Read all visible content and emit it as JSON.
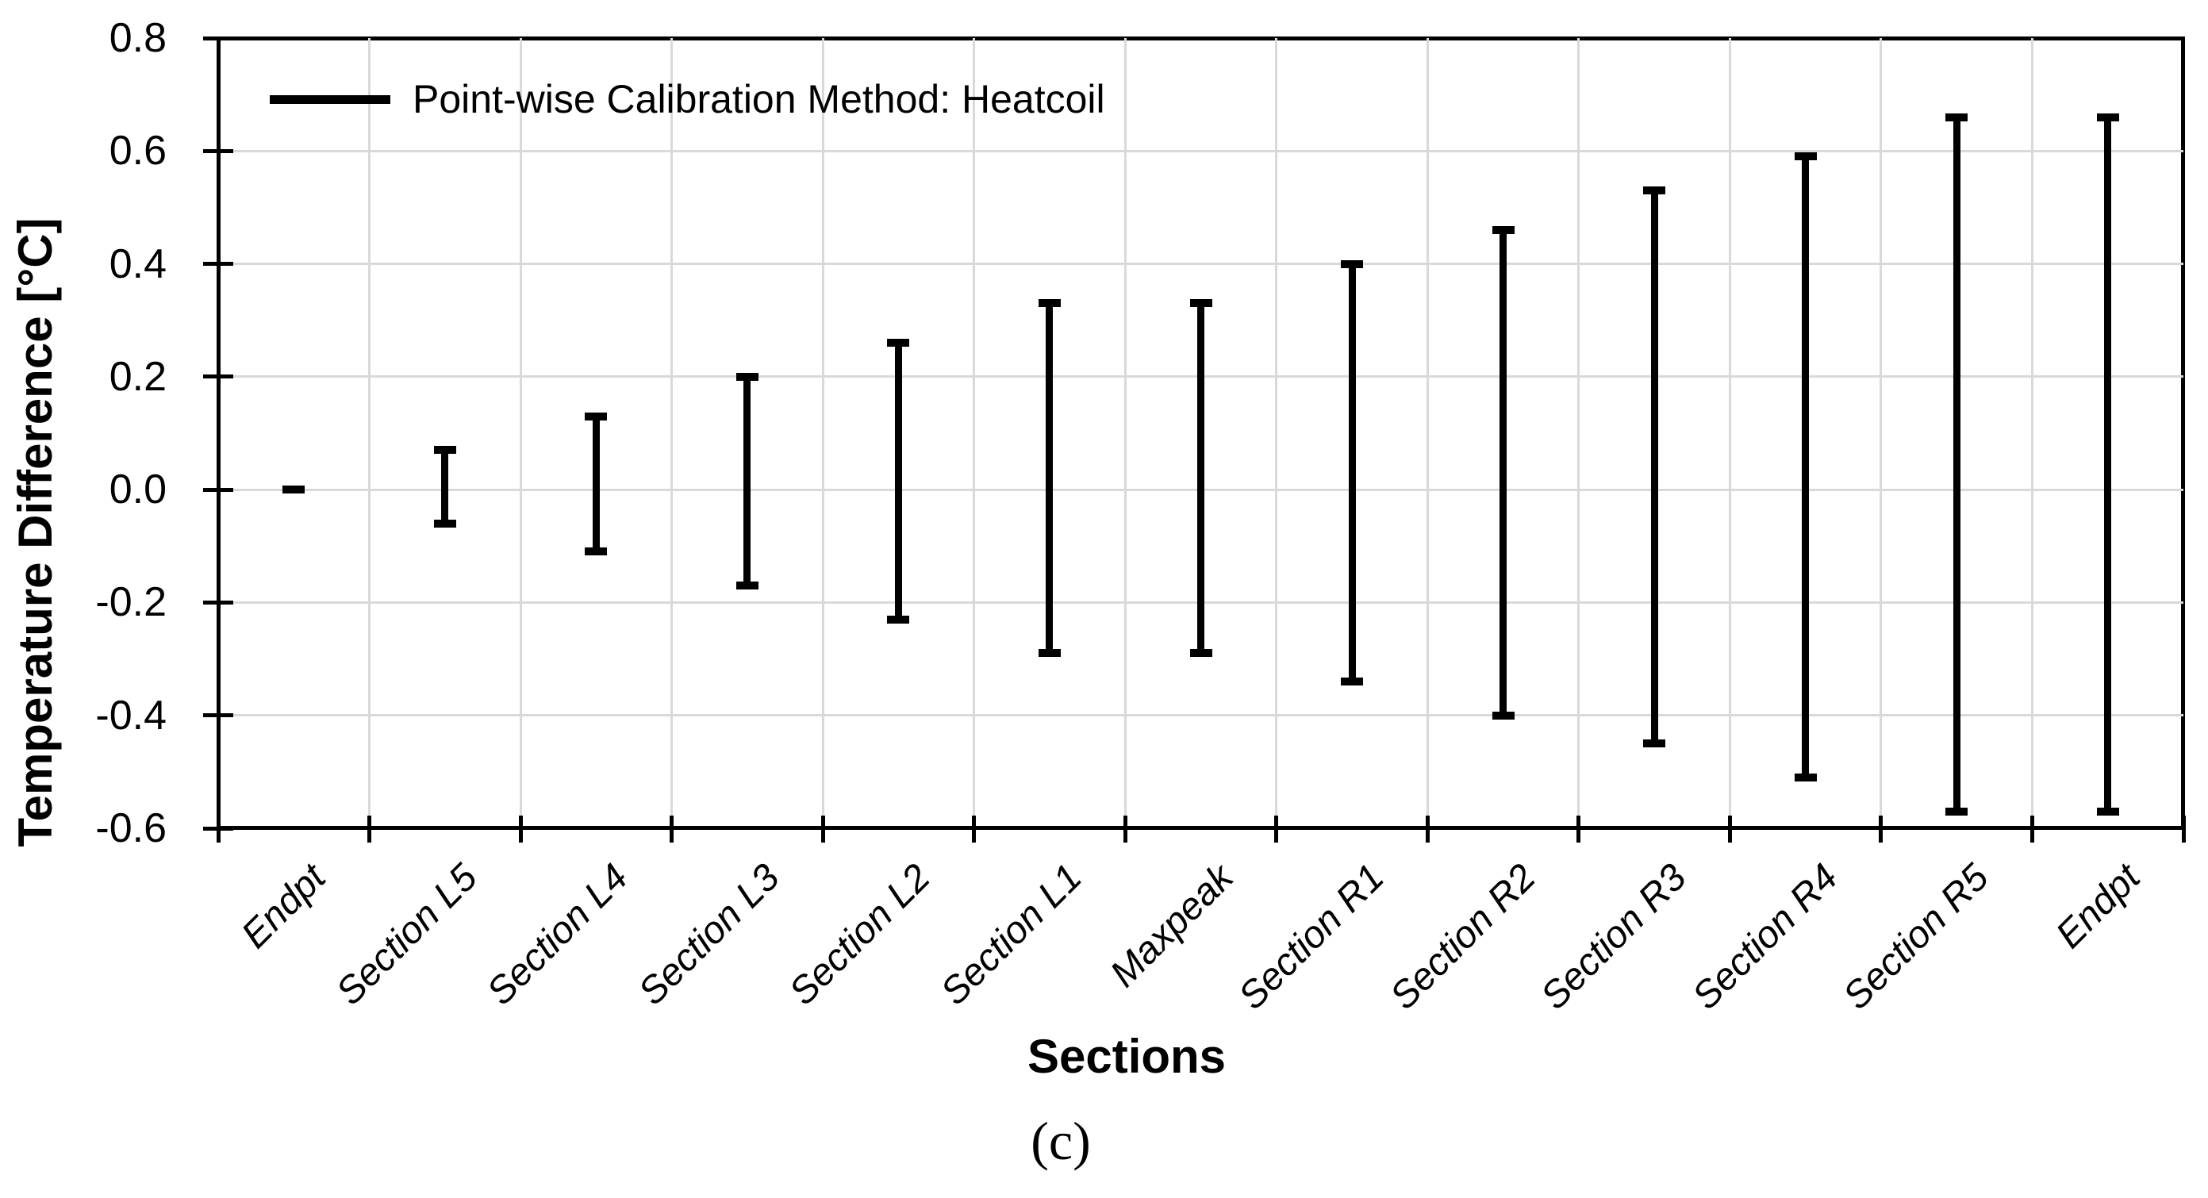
{
  "figure": {
    "caption": "(c)",
    "background_color": "#ffffff",
    "foreground_color": "#000000",
    "gridline_color": "#d9d9d9"
  },
  "legend": {
    "marker": "black-line-marker",
    "label": "Point-wise Calibration Method: Heatcoil"
  },
  "axes": {
    "y_title": "Temperature Difference [°C]",
    "x_title": "Sections",
    "y_tick_labels": [
      "0.8",
      "0.6",
      "0.4",
      "0.2",
      "0.0",
      "-0.2",
      "-0.4",
      "-0.6"
    ]
  },
  "chart_data": {
    "type": "bar",
    "subtype": "floating-range-error-bars",
    "title": "",
    "xlabel": "Sections",
    "ylabel": "Temperature Difference [°C]",
    "ylim": [
      -0.6,
      0.8
    ],
    "ytick_step": 0.2,
    "grid": true,
    "legend_position": "top-left-inside",
    "categories": [
      "Endpt",
      "Section L5",
      "Section L4",
      "Section L3",
      "Section L2",
      "Section L1",
      "Maxpeak",
      "Section R1",
      "Section R2",
      "Section R3",
      "Section R4",
      "Section R5",
      "Endpt"
    ],
    "series": [
      {
        "name": "Point-wise Calibration Method: Heatcoil",
        "ranges": [
          {
            "category": "Endpt",
            "low": 0.0,
            "high": 0.0
          },
          {
            "category": "Section L5",
            "low": -0.06,
            "high": 0.07
          },
          {
            "category": "Section L4",
            "low": -0.11,
            "high": 0.13
          },
          {
            "category": "Section L3",
            "low": -0.17,
            "high": 0.2
          },
          {
            "category": "Section L2",
            "low": -0.23,
            "high": 0.26
          },
          {
            "category": "Section L1",
            "low": -0.29,
            "high": 0.33
          },
          {
            "category": "Maxpeak",
            "low": -0.29,
            "high": 0.33
          },
          {
            "category": "Section R1",
            "low": -0.34,
            "high": 0.4
          },
          {
            "category": "Section R2",
            "low": -0.4,
            "high": 0.46
          },
          {
            "category": "Section R3",
            "low": -0.45,
            "high": 0.53
          },
          {
            "category": "Section R4",
            "low": -0.51,
            "high": 0.59
          },
          {
            "category": "Section R5",
            "low": -0.57,
            "high": 0.66
          },
          {
            "category": "Endpt",
            "low": -0.57,
            "high": 0.66
          }
        ]
      }
    ]
  }
}
